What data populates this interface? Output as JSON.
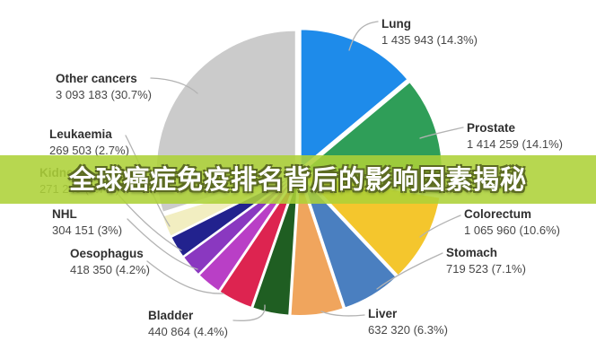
{
  "overlay": {
    "title": "全球癌症免疫排名背后的影响因素揭秘",
    "banner_color": "#add138",
    "text_color": "#ffffff",
    "outline_color": "#5c6b22"
  },
  "chart_data": {
    "type": "pie",
    "legend_position": "around-slices",
    "value_format": "count (percent)",
    "slices": [
      {
        "label": "Lung",
        "value": "1 435 943",
        "percent": 14.3,
        "display": "1 435 943 (14.3%)",
        "color": "#1e8bea"
      },
      {
        "label": "Prostate",
        "value": "1 414 259",
        "percent": 14.1,
        "display": "1 414 259 (14.1%)",
        "color": "#2f9e58"
      },
      {
        "label": "Colorectum",
        "value": "1 065 960",
        "percent": 10.6,
        "display": "1 065 960 (10.6%)",
        "color": "#f4c62d"
      },
      {
        "label": "Stomach",
        "value": "719 523",
        "percent": 7.1,
        "display": "719 523 (7.1%)",
        "color": "#4a7fc0"
      },
      {
        "label": "Liver",
        "value": "632 320",
        "percent": 6.3,
        "display": "632 320 (6.3%)",
        "color": "#f0a55d"
      },
      {
        "label": "Bladder",
        "value": "440 864",
        "percent": 4.4,
        "display": "440 864 (4.4%)",
        "color": "#1f5e22"
      },
      {
        "label": "Oesophagus",
        "value": "418 350",
        "percent": 4.2,
        "display": "418 350 (4.2%)",
        "color": "#dd2450"
      },
      {
        "label": "NHL",
        "value": "304 151",
        "percent": 3.0,
        "display": "304 151 (3%)",
        "color": "#b93fc6"
      },
      {
        "label": "Kidney",
        "value": "271 249",
        "percent": 2.7,
        "display": "271 249 (2.7%)",
        "color": "#8a38c0"
      },
      {
        "label": "Leukaemia",
        "value": "269 503",
        "percent": 2.7,
        "display": "269 503 (2.7%)",
        "color": "#22228e"
      },
      {
        "label": "",
        "value": "",
        "percent": 2.6,
        "display": "",
        "color": "#f2eec1"
      },
      {
        "label": "Other cancers",
        "value": "3 093 183",
        "percent": 30.7,
        "display": "3 093 183 (30.7%)",
        "color": "#cbcbcb"
      }
    ]
  }
}
